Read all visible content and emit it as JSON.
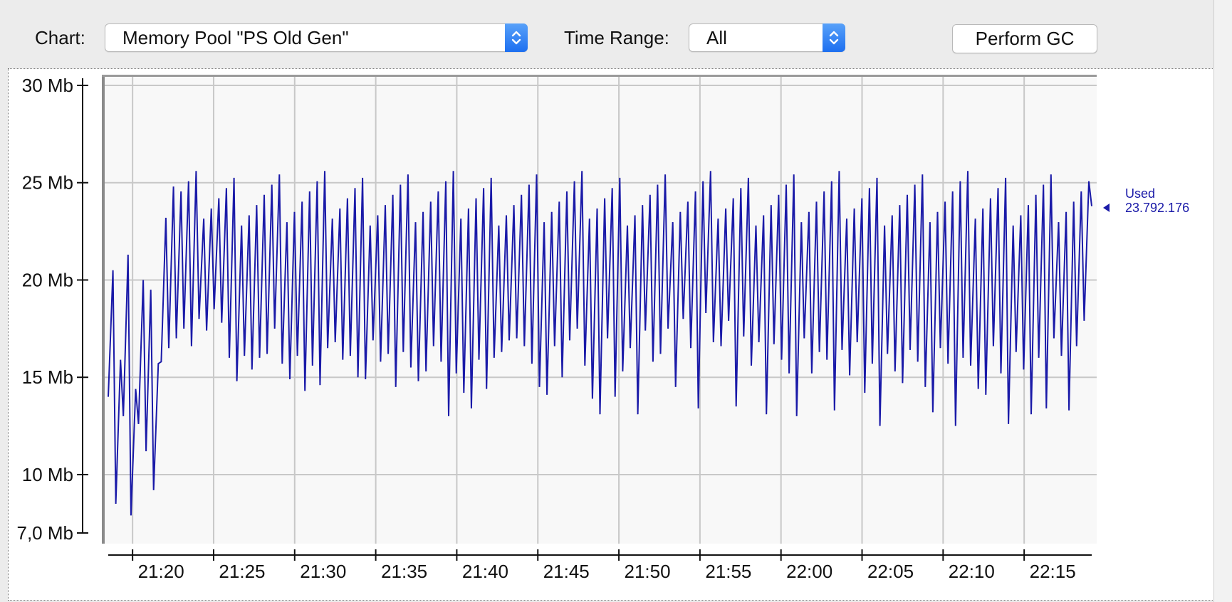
{
  "toolbar": {
    "chart_label": "Chart:",
    "chart_selected": "Memory Pool \"PS Old Gen\"",
    "time_range_label": "Time Range:",
    "time_range_selected": "All",
    "perform_gc_label": "Perform GC"
  },
  "colors": {
    "series": "#1a1aa8",
    "plot_background": "#f8f8f8",
    "grid": "#c8c8c8",
    "accent": "#1d6ff0"
  },
  "chart_data": {
    "type": "line",
    "title": "",
    "xlabel": "",
    "ylabel": "",
    "x_range": [
      "21:18:30",
      "22:19:10"
    ],
    "ylim": [
      7.0,
      30.0
    ],
    "y_ticks": [
      7.0,
      10,
      15,
      20,
      25,
      30
    ],
    "y_tick_labels": [
      "7,0 Mb",
      "10 Mb",
      "15 Mb",
      "20 Mb",
      "25 Mb",
      "30 Mb"
    ],
    "x_ticks": [
      "21:20",
      "21:25",
      "21:30",
      "21:35",
      "21:40",
      "21:45",
      "21:50",
      "21:55",
      "22:00",
      "22:05",
      "22:10",
      "22:15"
    ],
    "grid": true,
    "series": [
      {
        "name": "Used",
        "last_value_label": "23.792.176",
        "low_mb": [
          14.0,
          8.5,
          13.0,
          7.9,
          12.6,
          11.2,
          9.2,
          15.8,
          16.5,
          17.0,
          17.5,
          16.6,
          18.0,
          17.4,
          18.5,
          17.8,
          16.0,
          14.8,
          16.1,
          15.4,
          16.0,
          16.2,
          17.5,
          15.7,
          14.9,
          16.1,
          14.3,
          15.6,
          14.6,
          16.5,
          16.8,
          15.9,
          16.1,
          15.0,
          14.9,
          16.9,
          15.8,
          16.2,
          14.5,
          16.3,
          15.5,
          14.8,
          15.3,
          16.6,
          15.8,
          13.0,
          15.2,
          14.2,
          13.4,
          15.9,
          14.4,
          16.0,
          16.3,
          16.9,
          17.0,
          16.6,
          15.7,
          14.5,
          14.1,
          16.6,
          15.0,
          16.9,
          17.5,
          15.6,
          13.9,
          13.1,
          17.0,
          14.0,
          15.3,
          16.5,
          13.1,
          17.4,
          15.8,
          16.2,
          17.5,
          14.5,
          18.0,
          16.5,
          13.4,
          18.3,
          16.8,
          16.6,
          17.9,
          13.5,
          17.1,
          15.6,
          16.8,
          13.1,
          16.7,
          15.9,
          15.2,
          13.0,
          17.0,
          15.2,
          16.3,
          15.9,
          13.3,
          16.4,
          15.1,
          16.8,
          14.2,
          15.7,
          12.5,
          16.2,
          15.3,
          14.7,
          16.4,
          15.8,
          14.5,
          13.2,
          16.5,
          15.7,
          12.5,
          16.0,
          15.6,
          14.4,
          14.1,
          16.6,
          15.2,
          12.6,
          16.3,
          15.4,
          13.1,
          16.0,
          13.4,
          17.0,
          16.1,
          13.3,
          16.6,
          17.9
        ]
      }
    ]
  }
}
